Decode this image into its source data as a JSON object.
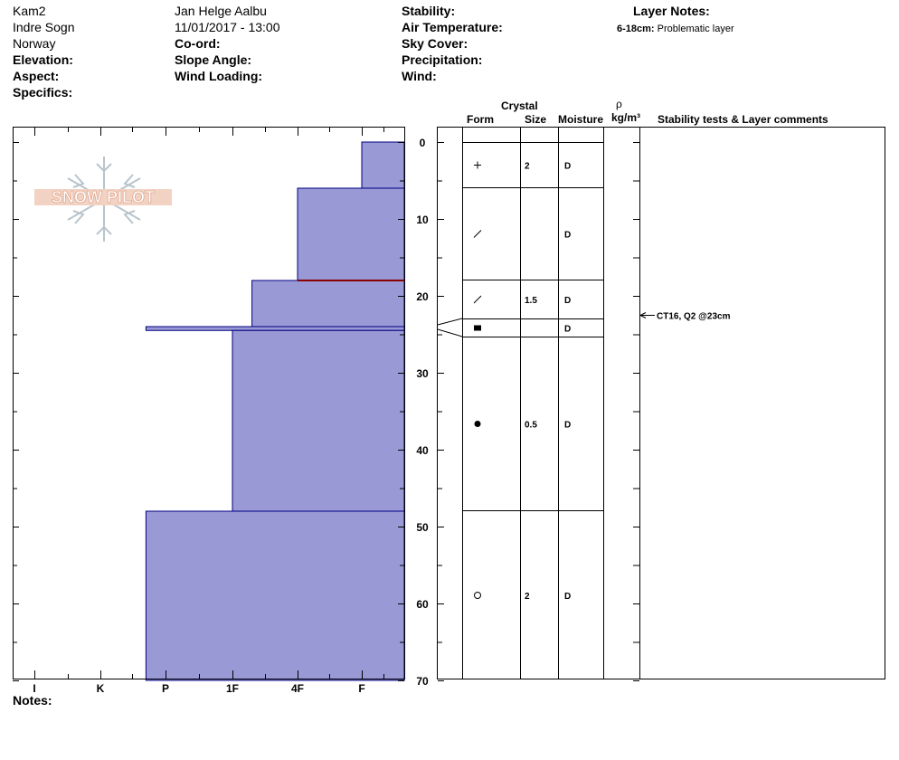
{
  "header": {
    "col1": [
      "Kam2",
      "Indre Sogn",
      "Norway"
    ],
    "col1_labels": [
      "Elevation:",
      "Aspect:",
      "Specifics:"
    ],
    "col2_values": [
      "Jan Helge Aalbu",
      "11/01/2017 - 13:00"
    ],
    "col2_labels": [
      "Co-ord:",
      "Slope Angle:",
      "Wind Loading:"
    ],
    "col3_labels": [
      "Stability:",
      "Air Temperature:",
      "Sky Cover:",
      "Precipitation:",
      "Wind:"
    ],
    "layer_notes_title": "Layer Notes:",
    "layer_note_range": "6-18cm:",
    "layer_note_text": "Problematic layer"
  },
  "logo": {
    "text": "SNOW PILOT"
  },
  "columns": {
    "crystal": "Crystal",
    "form": "Form",
    "size": "Size",
    "moisture": "Moisture",
    "rho": "ρ",
    "density_unit": "kg/m³",
    "stability": "Stability tests & Layer comments"
  },
  "notes_label": "Notes:",
  "chart_data": {
    "type": "snow-profile",
    "depth_axis": {
      "range": [
        0,
        70
      ],
      "ticks": [
        0,
        10,
        20,
        30,
        40,
        50,
        60,
        70
      ],
      "direction": "down"
    },
    "hardness_axis": {
      "ticks": [
        "I",
        "K",
        "P",
        "1F",
        "4F",
        "F"
      ]
    },
    "layers": [
      {
        "top": 0,
        "bottom": 6,
        "hardness_pos": 5.0,
        "form_icon": "plus",
        "size": "2",
        "moisture": "D"
      },
      {
        "top": 6,
        "bottom": 18,
        "hardness_pos": 4.0,
        "form_icon": "slash",
        "size": "",
        "moisture": "D"
      },
      {
        "top": 18,
        "bottom": 24,
        "hardness_pos": 3.3,
        "form_icon": "slash",
        "size": "1.5",
        "moisture": "D"
      },
      {
        "top": 24,
        "bottom": 24.5,
        "hardness_pos": 1.7,
        "form_icon": "square",
        "size": "",
        "moisture": "D"
      },
      {
        "top": 24.5,
        "bottom": 48,
        "hardness_pos": 3.0,
        "form_icon": "dot",
        "size": "0.5",
        "moisture": "D"
      },
      {
        "top": 48,
        "bottom": 70,
        "hardness_pos": 1.7,
        "form_icon": "circle",
        "size": "2",
        "moisture": "D"
      }
    ],
    "problem_line_depth": 18,
    "stability_tests": [
      {
        "depth": 23,
        "text": "CT16, Q2 @23cm"
      }
    ],
    "colors": {
      "fill": "#9999d6",
      "edge": "#000080",
      "problem": "#8b0000"
    }
  }
}
